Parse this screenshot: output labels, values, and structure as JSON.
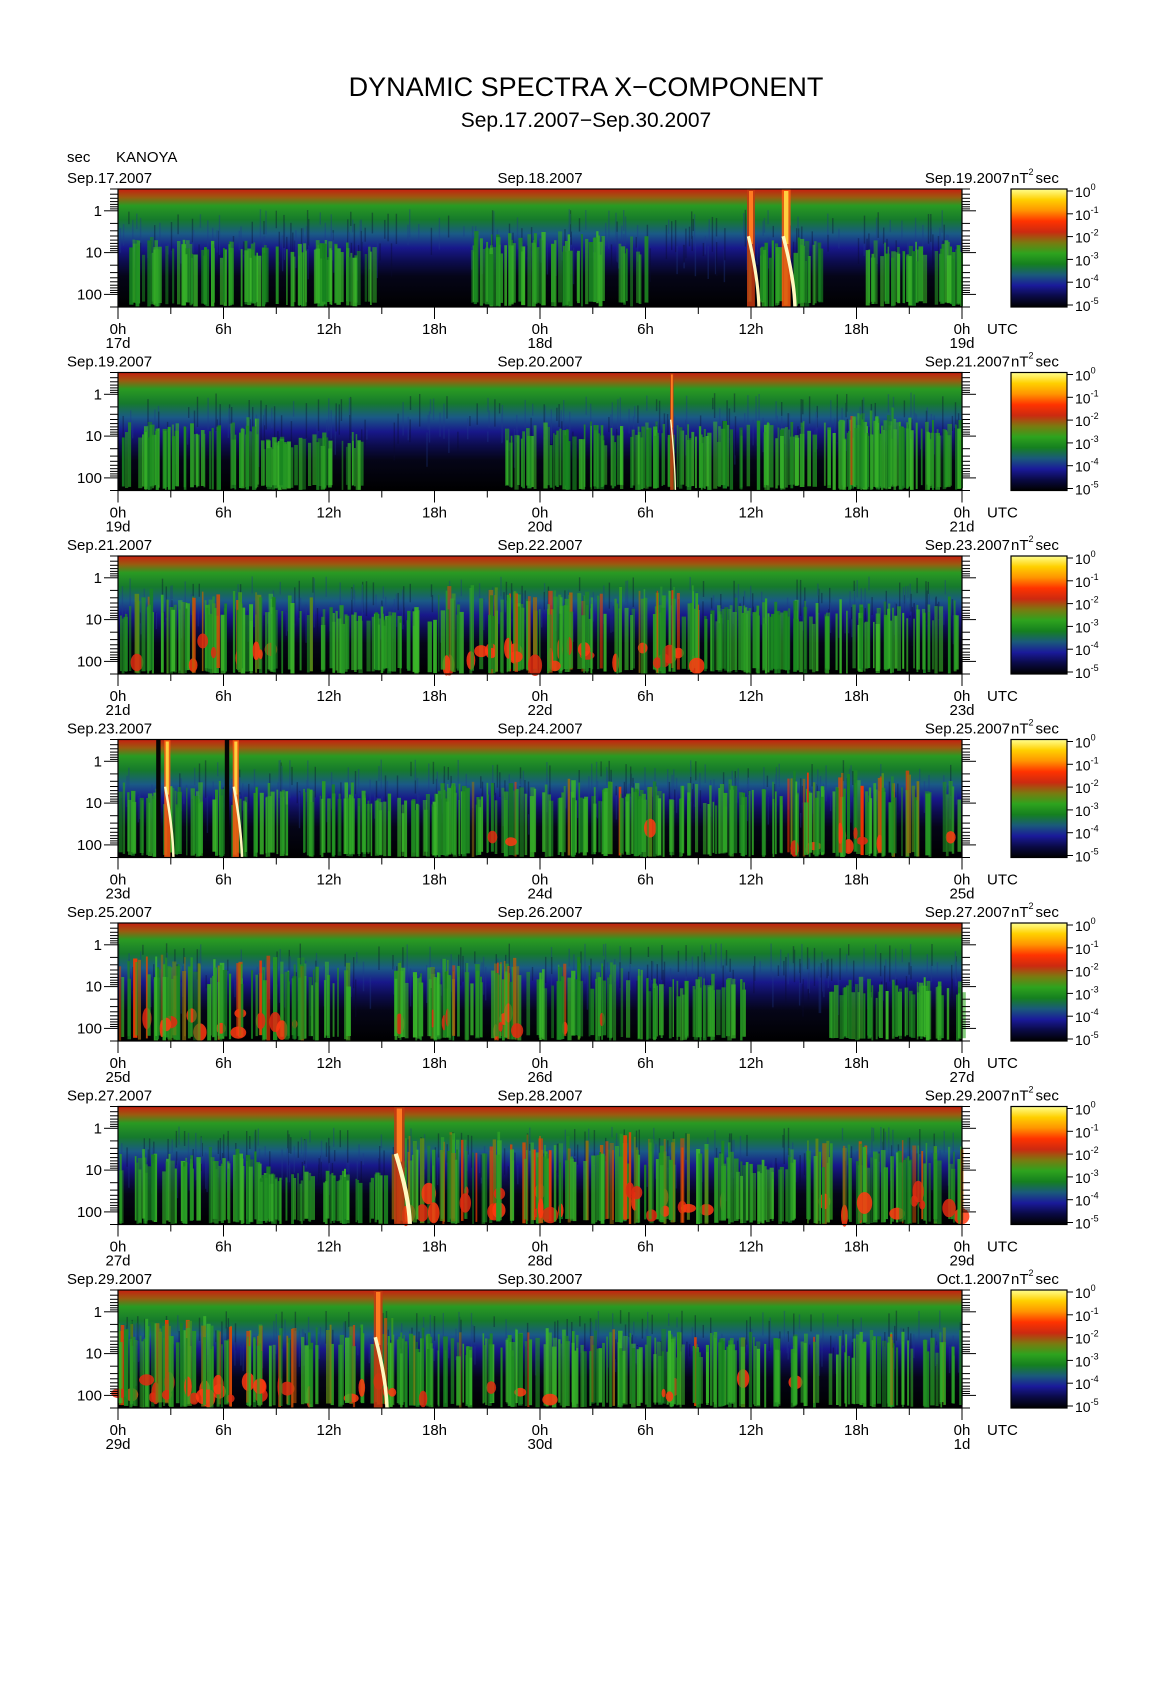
{
  "figure": {
    "title": "DYNAMIC SPECTRA X−COMPONENT",
    "subtitle": "Sep.17.2007−Sep.30.2007",
    "station": "KANOYA",
    "period_unit": "sec",
    "power_unit": "nT",
    "power_unit_exp": "2",
    "power_unit_suffix": "sec",
    "utc_label": "UTC"
  },
  "colorscale": {
    "stops": [
      "#000000",
      "#0a0a45",
      "#1a1a9a",
      "#1a5a7a",
      "#15801f",
      "#2ea31e",
      "#7a7a10",
      "#cc2a10",
      "#ff3300",
      "#ff9500",
      "#ffd000",
      "#ffff90"
    ],
    "tick_labels": [
      "10",
      "10",
      "10",
      "10",
      "10",
      "10"
    ],
    "tick_exponents": [
      "0",
      "-1",
      "-2",
      "-3",
      "-4",
      "-5"
    ]
  },
  "axis": {
    "y_ticks": [
      {
        "value": 1,
        "label": "1"
      },
      {
        "value": 10,
        "label": "10"
      },
      {
        "value": 100,
        "label": "100"
      }
    ],
    "x_ticks": [
      "0h",
      "6h",
      "12h",
      "18h",
      "0h",
      "6h",
      "12h",
      "18h",
      "0h"
    ]
  },
  "chart_data": [
    {
      "type": "heatmap",
      "start_label": "Sep.17.2007",
      "mid_label": "Sep.18.2007",
      "end_label": "Sep.19.2007",
      "day_labels": [
        "17d",
        "18d",
        "19d"
      ],
      "x_range_hours": [
        0,
        48
      ],
      "y_scale": "log",
      "y_range_sec": [
        0.3,
        200
      ],
      "activity": [
        {
          "start": 0.3,
          "end": 4.0,
          "level": 0.55
        },
        {
          "start": 4.0,
          "end": 12.0,
          "level": 0.45
        },
        {
          "start": 11.0,
          "end": 14.5,
          "level": 0.5
        },
        {
          "start": 20.0,
          "end": 30.0,
          "level": 0.6
        },
        {
          "start": 35.5,
          "end": 40.0,
          "level": 0.5
        },
        {
          "start": 42.0,
          "end": 48.0,
          "level": 0.45
        }
      ],
      "bursts": [
        {
          "t": 36.0,
          "width": 0.45,
          "level": 0.75
        },
        {
          "t": 38.0,
          "width": 0.5,
          "level": 1.0
        }
      ]
    },
    {
      "type": "heatmap",
      "start_label": "Sep.19.2007",
      "mid_label": "Sep.20.2007",
      "end_label": "Sep.21.2007",
      "day_labels": [
        "19d",
        "20d",
        "21d"
      ],
      "x_range_hours": [
        0,
        48
      ],
      "y_scale": "log",
      "y_range_sec": [
        0.3,
        200
      ],
      "activity": [
        {
          "start": 0.2,
          "end": 8.0,
          "level": 0.55
        },
        {
          "start": 8.0,
          "end": 14.0,
          "level": 0.3
        },
        {
          "start": 22.0,
          "end": 34.0,
          "level": 0.5
        },
        {
          "start": 34.0,
          "end": 48.0,
          "level": 0.55
        },
        {
          "start": 41.0,
          "end": 45.0,
          "level": 0.75
        }
      ],
      "bursts": [
        {
          "t": 31.5,
          "width": 0.2,
          "level": 0.75
        }
      ]
    },
    {
      "type": "heatmap",
      "start_label": "Sep.21.2007",
      "mid_label": "Sep.22.2007",
      "end_label": "Sep.23.2007",
      "day_labels": [
        "21d",
        "22d",
        "23d"
      ],
      "x_range_hours": [
        0,
        48
      ],
      "y_scale": "log",
      "y_range_sec": [
        0.3,
        200
      ],
      "activity": [
        {
          "start": 0.0,
          "end": 11.0,
          "level": 0.75
        },
        {
          "start": 11.0,
          "end": 18.0,
          "level": 0.5
        },
        {
          "start": 18.0,
          "end": 33.0,
          "level": 0.8
        },
        {
          "start": 33.0,
          "end": 48.0,
          "level": 0.6
        }
      ],
      "bursts": []
    },
    {
      "type": "heatmap",
      "start_label": "Sep.23.2007",
      "mid_label": "Sep.24.2007",
      "end_label": "Sep.25.2007",
      "day_labels": [
        "23d",
        "24d",
        "25d"
      ],
      "x_range_hours": [
        0,
        48
      ],
      "y_scale": "log",
      "y_range_sec": [
        0.3,
        200
      ],
      "activity": [
        {
          "start": 0.0,
          "end": 14.0,
          "level": 0.6
        },
        {
          "start": 14.0,
          "end": 18.0,
          "level": 0.4
        },
        {
          "start": 18.0,
          "end": 38.0,
          "level": 0.65
        },
        {
          "start": 38.0,
          "end": 48.0,
          "level": 0.75
        }
      ],
      "bursts": [
        {
          "t": 2.3,
          "width": 0.25,
          "level": 1.0,
          "dark": true
        },
        {
          "t": 2.8,
          "width": 0.35,
          "level": 1.0
        },
        {
          "t": 6.2,
          "width": 0.25,
          "level": 1.0,
          "dark": true
        },
        {
          "t": 6.7,
          "width": 0.35,
          "level": 1.0
        }
      ]
    },
    {
      "type": "heatmap",
      "start_label": "Sep.25.2007",
      "mid_label": "Sep.26.2007",
      "end_label": "Sep.27.2007",
      "day_labels": [
        "25d",
        "26d",
        "27d"
      ],
      "x_range_hours": [
        0,
        48
      ],
      "y_scale": "log",
      "y_range_sec": [
        0.3,
        200
      ],
      "activity": [
        {
          "start": 0.0,
          "end": 13.0,
          "level": 0.75
        },
        {
          "start": 15.5,
          "end": 30.0,
          "level": 0.7
        },
        {
          "start": 30.0,
          "end": 36.0,
          "level": 0.45
        },
        {
          "start": 40.0,
          "end": 48.0,
          "level": 0.4
        }
      ],
      "bursts": []
    },
    {
      "type": "heatmap",
      "start_label": "Sep.27.2007",
      "mid_label": "Sep.28.2007",
      "end_label": "Sep.29.2007",
      "day_labels": [
        "27d",
        "28d",
        "29d"
      ],
      "x_range_hours": [
        0,
        48
      ],
      "y_scale": "log",
      "y_range_sec": [
        0.3,
        200
      ],
      "activity": [
        {
          "start": 0.0,
          "end": 8.0,
          "level": 0.6
        },
        {
          "start": 8.0,
          "end": 15.5,
          "level": 0.3
        },
        {
          "start": 15.5,
          "end": 35.0,
          "level": 0.85
        },
        {
          "start": 35.0,
          "end": 38.0,
          "level": 0.45
        },
        {
          "start": 38.0,
          "end": 48.0,
          "level": 0.75
        }
      ],
      "bursts": [
        {
          "t": 16.0,
          "width": 0.6,
          "level": 0.8
        }
      ]
    },
    {
      "type": "heatmap",
      "start_label": "Sep.29.2007",
      "mid_label": "Sep.30.2007",
      "end_label": "Oct.1.2007",
      "day_labels": [
        "29d",
        "30d",
        "1d"
      ],
      "x_range_hours": [
        0,
        48
      ],
      "y_scale": "log",
      "y_range_sec": [
        0.3,
        200
      ],
      "activity": [
        {
          "start": 0.0,
          "end": 16.0,
          "level": 0.85
        },
        {
          "start": 16.0,
          "end": 48.0,
          "level": 0.65
        }
      ],
      "bursts": [
        {
          "t": 14.8,
          "width": 0.5,
          "level": 0.8
        }
      ]
    }
  ]
}
